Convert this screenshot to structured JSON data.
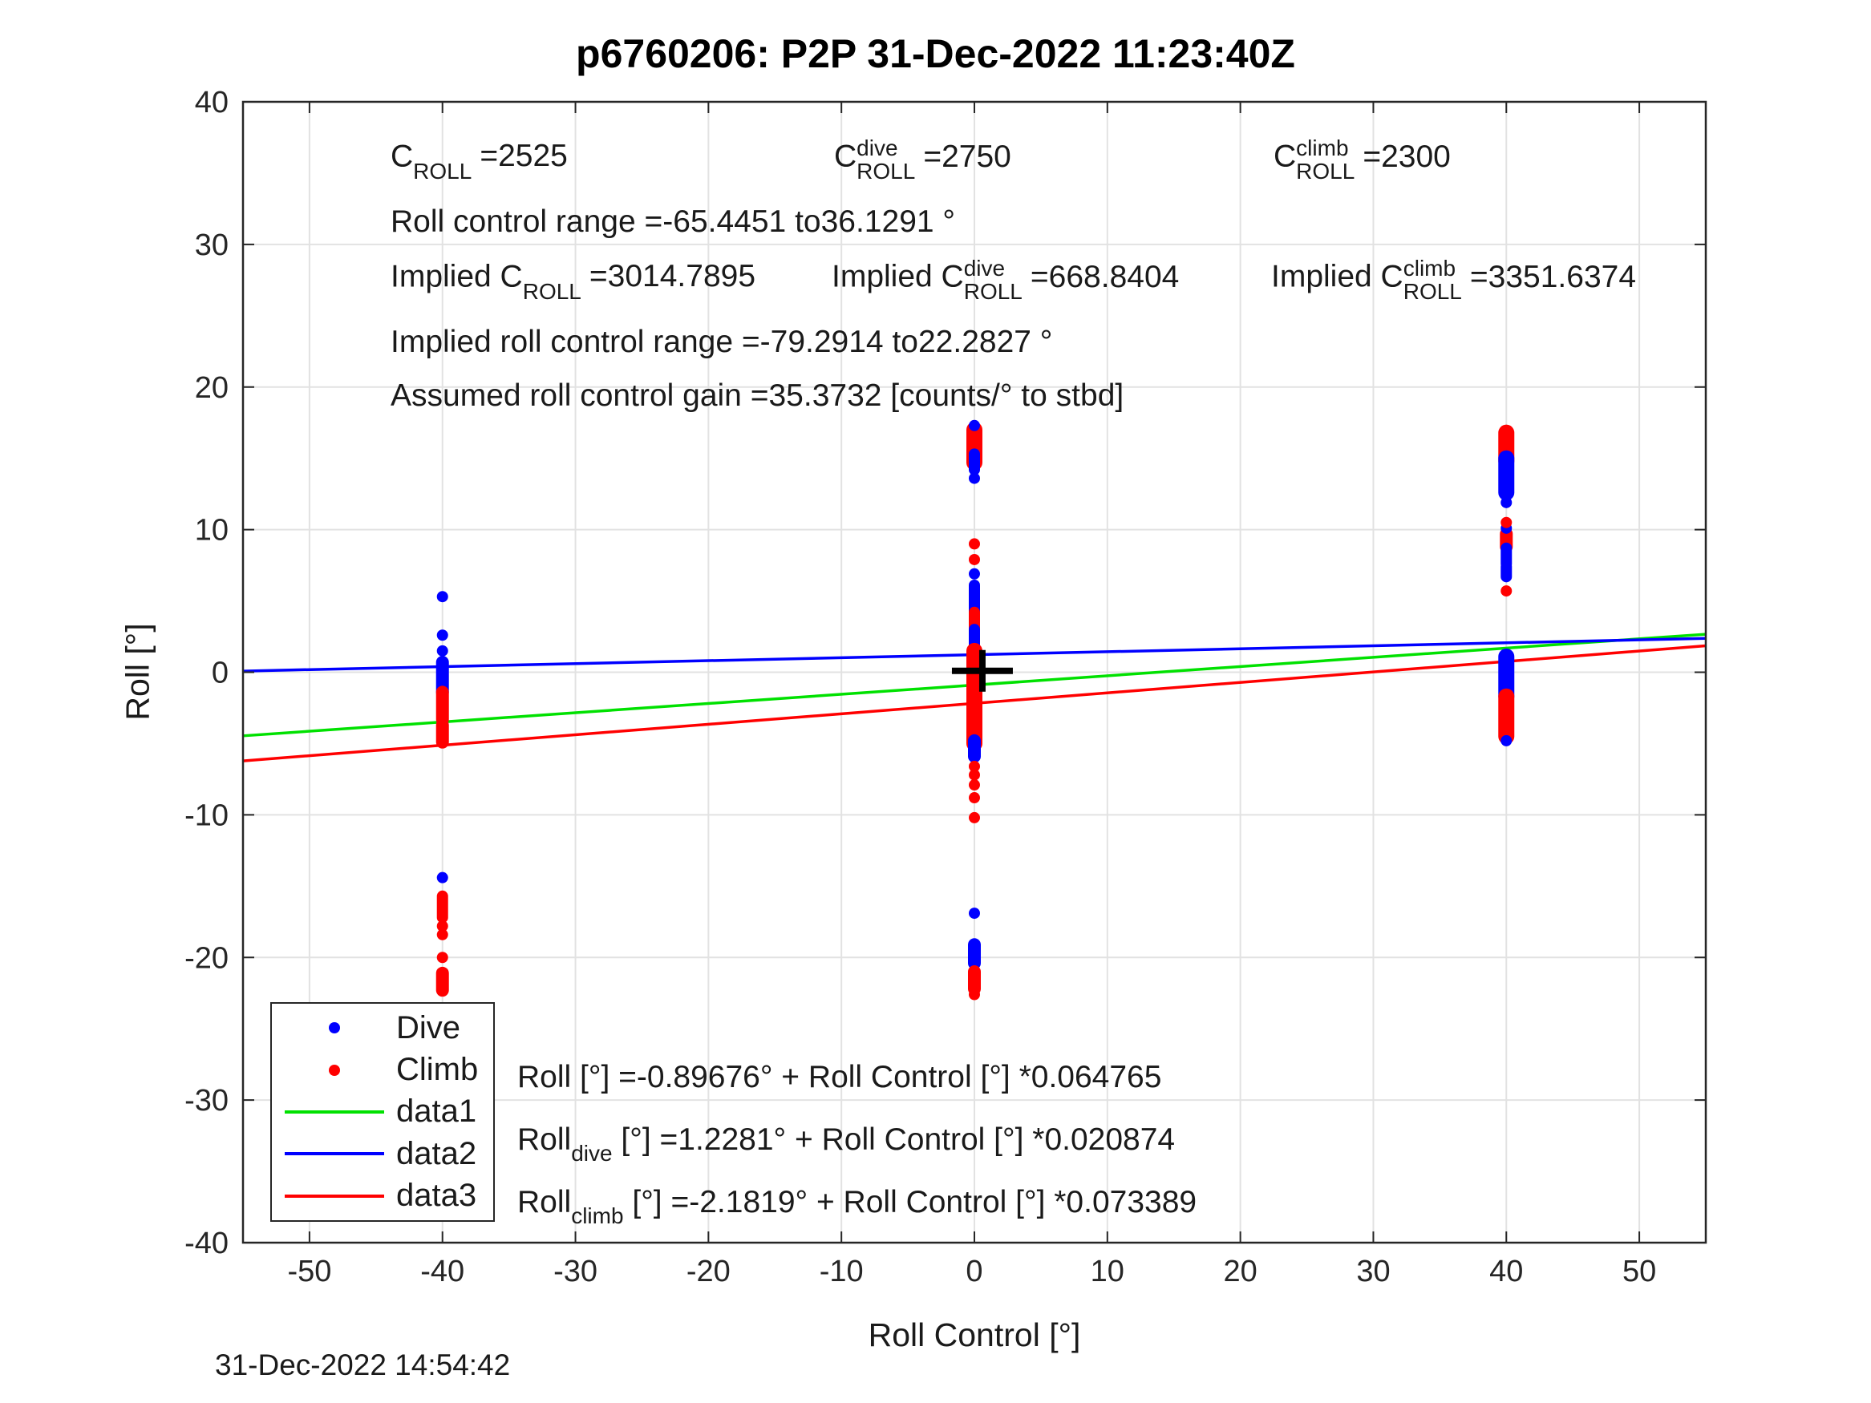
{
  "header": {
    "title": "p6760206: P2P 31-Dec-2022 11:23:40Z"
  },
  "footer": {
    "timestamp": "31-Dec-2022 14:54:42"
  },
  "colors": {
    "dive": "#0000ff",
    "climb": "#ff0000",
    "data1": "#00e100",
    "data2": "#0000ff",
    "data3": "#ff0000",
    "axis": "#262626",
    "grid": "#e2e2e2",
    "marker_cross": "#000000"
  },
  "annotations": {
    "row1": [
      {
        "pre": "C",
        "sup": "",
        "sub": "ROLL",
        "val": "=2525"
      },
      {
        "pre": "C",
        "sup": "dive",
        "sub": "ROLL",
        "val": "=2750"
      },
      {
        "pre": "C",
        "sup": "climb",
        "sub": "ROLL",
        "val": "=2300"
      }
    ],
    "row2": "Roll control range =-65.4451 to36.1291 °",
    "row3": [
      {
        "pre": "Implied C",
        "sup": "",
        "sub": "ROLL",
        "val": "=3014.7895"
      },
      {
        "pre": "Implied C",
        "sup": "dive",
        "sub": "ROLL",
        "val": "=668.8404"
      },
      {
        "pre": "Implied C",
        "sup": "climb",
        "sub": "ROLL",
        "val": "=3351.6374"
      }
    ],
    "row4": "Implied roll control range =-79.2914 to22.2827 °",
    "row5": "Assumed roll control gain =35.3732 [counts/° to stbd]"
  },
  "equations": [
    {
      "base": "Roll",
      "sub": "",
      "rest": " [°] =-0.89676° + Roll Control [°] *0.064765"
    },
    {
      "base": "Roll",
      "sub": "dive",
      "rest": " [°] =1.2281° + Roll Control [°] *0.020874"
    },
    {
      "base": "Roll",
      "sub": "climb",
      "rest": " [°] =-2.1819° + Roll Control [°] *0.073389"
    }
  ],
  "legend": {
    "entries": [
      {
        "label": "Dive",
        "marker": "dot",
        "color": "#0000ff"
      },
      {
        "label": "Climb",
        "marker": "dot",
        "color": "#ff0000"
      },
      {
        "label": "data1",
        "marker": "line",
        "color": "#00e100"
      },
      {
        "label": "data2",
        "marker": "line",
        "color": "#0000ff"
      },
      {
        "label": "data3",
        "marker": "line",
        "color": "#ff0000"
      }
    ]
  },
  "chart_data": {
    "type": "scatter",
    "title": "p6760206: P2P 31-Dec-2022 11:23:40Z",
    "xlabel": "Roll Control [°]",
    "ylabel": "Roll [°]",
    "xlim": [
      -55,
      55
    ],
    "ylim": [
      -40,
      40
    ],
    "xticks": [
      -50,
      -40,
      -30,
      -20,
      -10,
      0,
      10,
      20,
      30,
      40,
      50
    ],
    "yticks": [
      -40,
      -30,
      -20,
      -10,
      0,
      10,
      20,
      30,
      40
    ],
    "grid": true,
    "legend_position": "bottom-left",
    "fits": [
      {
        "name": "data1",
        "series": "all",
        "color": "#00e100",
        "intercept": -0.89676,
        "slope": 0.064765
      },
      {
        "name": "data2",
        "series": "dive",
        "color": "#0000ff",
        "intercept": 1.2281,
        "slope": 0.020874
      },
      {
        "name": "data3",
        "series": "climb",
        "color": "#ff0000",
        "intercept": -2.1819,
        "slope": 0.073389
      }
    ],
    "marker_cross": {
      "x": 0.6,
      "y": 0.1
    },
    "clusters": [
      {
        "x": -40,
        "segments": [
          {
            "c": "dive",
            "a": 0.7,
            "b": -1.4,
            "w": 16
          },
          {
            "c": "climb",
            "a": -1.4,
            "b": -3.3,
            "w": 16
          },
          {
            "c": "climb",
            "a": -3.7,
            "b": -4.9,
            "w": 16
          },
          {
            "c": "climb",
            "a": -15.7,
            "b": -17.2,
            "w": 14
          },
          {
            "c": "climb",
            "a": -21.1,
            "b": -22.3,
            "w": 16
          }
        ],
        "points": [
          {
            "c": "dive",
            "y": 5.3
          },
          {
            "c": "dive",
            "y": 2.6
          },
          {
            "c": "dive",
            "y": 1.5
          },
          {
            "c": "dive",
            "y": -14.4
          },
          {
            "c": "climb",
            "y": -17.8
          },
          {
            "c": "climb",
            "y": -18.4
          },
          {
            "c": "climb",
            "y": -20.0
          }
        ]
      },
      {
        "x": 0,
        "segments": [
          {
            "c": "climb",
            "a": 17.0,
            "b": 14.7,
            "w": 20
          },
          {
            "c": "dive",
            "a": 15.3,
            "b": 14.2,
            "w": 14
          },
          {
            "c": "dive",
            "a": 6.1,
            "b": 3.4,
            "w": 14
          },
          {
            "c": "climb",
            "a": 4.2,
            "b": 2.6,
            "w": 14
          },
          {
            "c": "dive",
            "a": 3.0,
            "b": 1.2,
            "w": 14
          },
          {
            "c": "climb",
            "a": 1.5,
            "b": -5.0,
            "w": 20
          },
          {
            "c": "dive",
            "a": -4.8,
            "b": -5.9,
            "w": 16
          },
          {
            "c": "dive",
            "a": -19.1,
            "b": -20.4,
            "w": 16
          },
          {
            "c": "climb",
            "a": -21.0,
            "b": -22.2,
            "w": 16
          }
        ],
        "points": [
          {
            "c": "dive",
            "y": 17.3
          },
          {
            "c": "dive",
            "y": 13.6
          },
          {
            "c": "dive",
            "y": 6.9
          },
          {
            "c": "dive",
            "y": -16.9
          },
          {
            "c": "climb",
            "y": 9.0
          },
          {
            "c": "climb",
            "y": 7.9
          },
          {
            "c": "climb",
            "y": -6.6
          },
          {
            "c": "climb",
            "y": -7.2
          },
          {
            "c": "climb",
            "y": -7.9
          },
          {
            "c": "climb",
            "y": -8.8
          },
          {
            "c": "climb",
            "y": -10.2
          },
          {
            "c": "climb",
            "y": -22.6
          }
        ]
      },
      {
        "x": 40,
        "segments": [
          {
            "c": "climb",
            "a": 16.8,
            "b": 14.8,
            "w": 20
          },
          {
            "c": "dive",
            "a": 15.0,
            "b": 12.6,
            "w": 20
          },
          {
            "c": "climb",
            "a": 9.7,
            "b": 8.8,
            "w": 16
          },
          {
            "c": "dive",
            "a": 8.7,
            "b": 7.6,
            "w": 14
          },
          {
            "c": "dive",
            "a": 7.4,
            "b": 6.7,
            "w": 14
          },
          {
            "c": "dive",
            "a": 1.1,
            "b": -1.7,
            "w": 20
          },
          {
            "c": "climb",
            "a": -1.7,
            "b": -4.5,
            "w": 20
          }
        ],
        "points": [
          {
            "c": "dive",
            "y": 11.9
          },
          {
            "c": "dive",
            "y": 10.1
          },
          {
            "c": "dive",
            "y": -4.8
          },
          {
            "c": "climb",
            "y": 10.5
          },
          {
            "c": "climb",
            "y": 5.7
          }
        ]
      }
    ]
  }
}
